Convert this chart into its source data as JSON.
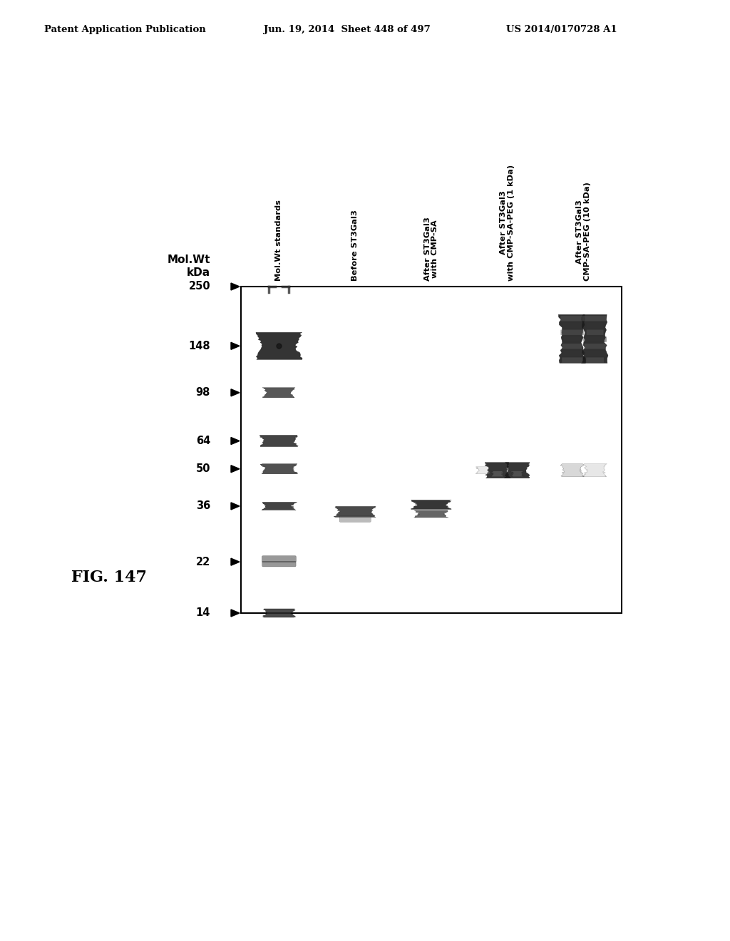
{
  "header_left": "Patent Application Publication",
  "header_mid": "Jun. 19, 2014  Sheet 448 of 497",
  "header_right": "US 2014/0170728 A1",
  "fig_label": "FIG. 147",
  "mw_markers": [
    250,
    148,
    98,
    64,
    50,
    36,
    22,
    14
  ],
  "column_labels": [
    "Mol.Wt standards",
    "Before ST3Gal3",
    "After ST3Gal3\nwith CMP-SA",
    "After ST3Gal3\nwith CMP-SA-PEG (1 kDa)",
    "After ST3Gal3\nCMP-SA-PEG (10 kDa)"
  ],
  "background_color": "#ffffff"
}
